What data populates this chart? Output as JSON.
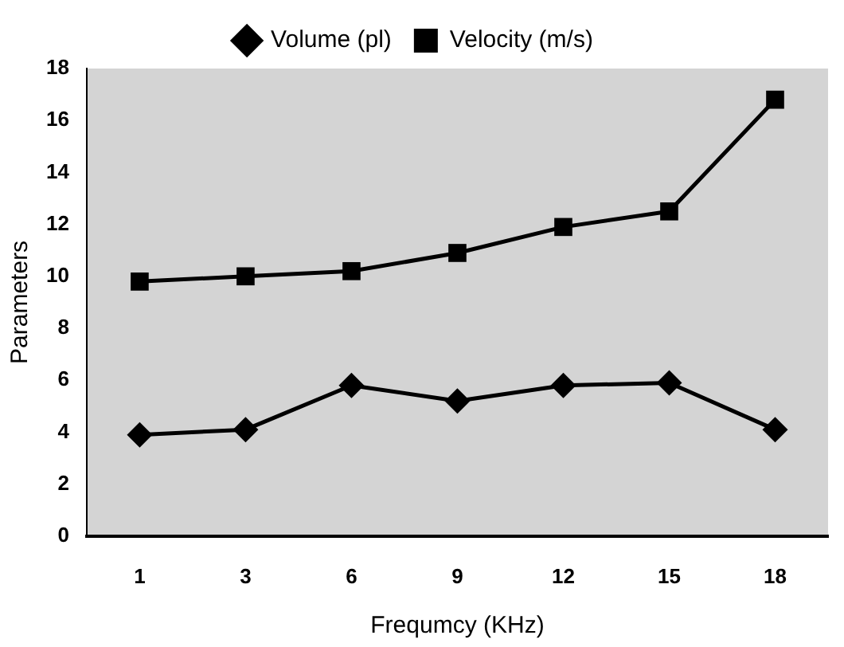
{
  "chart_data": {
    "type": "line",
    "xlabel": "Frequmcy (KHz)",
    "ylabel": "Parameters",
    "categories": [
      "1",
      "3",
      "6",
      "9",
      "12",
      "15",
      "18"
    ],
    "series": [
      {
        "name": "Volume (pl)",
        "color": "#000000",
        "marker": "diamond",
        "values": [
          3.9,
          4.1,
          5.8,
          5.2,
          5.8,
          5.9,
          4.1
        ]
      },
      {
        "name": "Velocity (m/s)",
        "color": "#000000",
        "marker": "square",
        "values": [
          9.8,
          10.0,
          10.2,
          10.9,
          11.9,
          12.5,
          16.8
        ]
      }
    ],
    "ylim": [
      0,
      18
    ],
    "yticks": [
      0,
      2,
      4,
      6,
      8,
      10,
      12,
      14,
      16,
      18
    ],
    "grid": false,
    "legend": "top",
    "line_style": "solid"
  }
}
